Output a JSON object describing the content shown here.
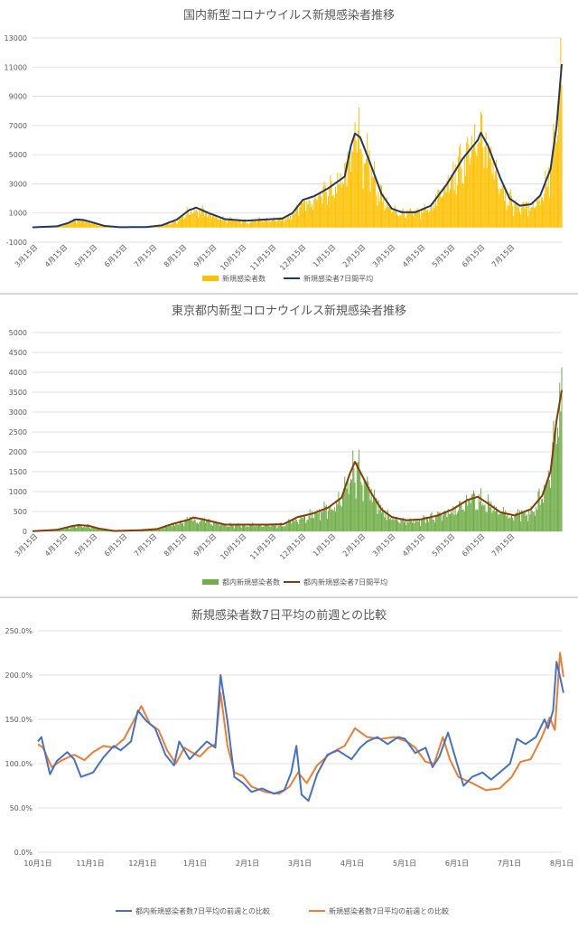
{
  "chart_data": [
    {
      "type": "bar+line",
      "title": "国内新型コロナウイルス新規感染者推移",
      "y_ticks": [
        "13000",
        "11000",
        "9000",
        "7000",
        "5000",
        "3000",
        "1000",
        "-1000"
      ],
      "ylim": [
        -1000,
        13000
      ],
      "x_ticks": [
        "3月15日",
        "4月15日",
        "5月15日",
        "6月15日",
        "7月15日",
        "8月15日",
        "9月15日",
        "10月15日",
        "11月15日",
        "12月15日",
        "1月15日",
        "2月15日",
        "3月15日",
        "4月15日",
        "5月15日",
        "6月15日",
        "7月15日"
      ],
      "x_start": "2020-03-01",
      "x_end": "2021-07-31",
      "grid": true,
      "legend_position": "bottom",
      "series": [
        {
          "name": "新規感染者数",
          "kind": "bar",
          "color": "#ffc000"
        },
        {
          "name": "新規感染者7日間平均",
          "kind": "line",
          "color": "#203864"
        }
      ],
      "avg_keypoints": [
        [
          "2020-03-01",
          20
        ],
        [
          "2020-03-25",
          90
        ],
        [
          "2020-04-05",
          320
        ],
        [
          "2020-04-12",
          560
        ],
        [
          "2020-04-20",
          520
        ],
        [
          "2020-04-30",
          330
        ],
        [
          "2020-05-10",
          120
        ],
        [
          "2020-05-25",
          30
        ],
        [
          "2020-06-20",
          40
        ],
        [
          "2020-07-05",
          150
        ],
        [
          "2020-07-20",
          550
        ],
        [
          "2020-08-01",
          1200
        ],
        [
          "2020-08-08",
          1370
        ],
        [
          "2020-08-20",
          1000
        ],
        [
          "2020-09-05",
          580
        ],
        [
          "2020-09-25",
          470
        ],
        [
          "2020-10-15",
          560
        ],
        [
          "2020-10-31",
          620
        ],
        [
          "2020-11-10",
          1000
        ],
        [
          "2020-11-20",
          1900
        ],
        [
          "2020-12-01",
          2150
        ],
        [
          "2020-12-15",
          2700
        ],
        [
          "2020-12-31",
          3500
        ],
        [
          "2021-01-06",
          5600
        ],
        [
          "2021-01-10",
          6450
        ],
        [
          "2021-01-15",
          6200
        ],
        [
          "2021-01-25",
          4400
        ],
        [
          "2021-02-05",
          2300
        ],
        [
          "2021-02-15",
          1300
        ],
        [
          "2021-02-25",
          1050
        ],
        [
          "2021-03-10",
          1050
        ],
        [
          "2021-03-25",
          1500
        ],
        [
          "2021-04-10",
          3000
        ],
        [
          "2021-04-25",
          4700
        ],
        [
          "2021-05-10",
          6000
        ],
        [
          "2021-05-13",
          6500
        ],
        [
          "2021-05-20",
          5600
        ],
        [
          "2021-06-01",
          3400
        ],
        [
          "2021-06-10",
          2000
        ],
        [
          "2021-06-20",
          1500
        ],
        [
          "2021-07-01",
          1600
        ],
        [
          "2021-07-10",
          2200
        ],
        [
          "2021-07-20",
          4000
        ],
        [
          "2021-07-26",
          7000
        ],
        [
          "2021-07-31",
          11200
        ]
      ]
    },
    {
      "type": "bar+line",
      "title": "東京都内新型コロナウイルス新規感染者推移",
      "y_ticks": [
        "5000",
        "4500",
        "4000",
        "3500",
        "3000",
        "2500",
        "2000",
        "1500",
        "1000",
        "500",
        "0"
      ],
      "ylim": [
        0,
        5000
      ],
      "x_ticks": [
        "3月15日",
        "4月15日",
        "5月15日",
        "6月15日",
        "7月15日",
        "8月15日",
        "9月15日",
        "10月15日",
        "11月15日",
        "12月15日",
        "1月15日",
        "2月15日",
        "3月15日",
        "4月15日",
        "5月15日",
        "6月15日",
        "7月15日"
      ],
      "x_start": "2020-03-01",
      "x_end": "2021-07-31",
      "grid": true,
      "legend_position": "bottom",
      "series": [
        {
          "name": "都内新規感染者数",
          "kind": "bar",
          "color": "#70ad47"
        },
        {
          "name": "都内新規感染者7日間平均",
          "kind": "line",
          "color": "#843c0c"
        }
      ],
      "avg_keypoints": [
        [
          "2020-03-01",
          5
        ],
        [
          "2020-03-25",
          40
        ],
        [
          "2020-04-08",
          130
        ],
        [
          "2020-04-15",
          160
        ],
        [
          "2020-04-25",
          140
        ],
        [
          "2020-05-05",
          70
        ],
        [
          "2020-05-20",
          10
        ],
        [
          "2020-06-15",
          30
        ],
        [
          "2020-07-01",
          60
        ],
        [
          "2020-07-15",
          180
        ],
        [
          "2020-07-31",
          290
        ],
        [
          "2020-08-05",
          350
        ],
        [
          "2020-08-15",
          300
        ],
        [
          "2020-09-05",
          170
        ],
        [
          "2020-09-25",
          170
        ],
        [
          "2020-10-15",
          170
        ],
        [
          "2020-11-01",
          180
        ],
        [
          "2020-11-15",
          360
        ],
        [
          "2020-11-30",
          450
        ],
        [
          "2020-12-15",
          600
        ],
        [
          "2020-12-28",
          850
        ],
        [
          "2021-01-05",
          1450
        ],
        [
          "2021-01-10",
          1750
        ],
        [
          "2021-01-15",
          1500
        ],
        [
          "2021-01-25",
          1000
        ],
        [
          "2021-02-05",
          550
        ],
        [
          "2021-02-15",
          360
        ],
        [
          "2021-03-01",
          280
        ],
        [
          "2021-03-15",
          300
        ],
        [
          "2021-04-01",
          400
        ],
        [
          "2021-04-15",
          550
        ],
        [
          "2021-04-30",
          790
        ],
        [
          "2021-05-10",
          870
        ],
        [
          "2021-05-20",
          700
        ],
        [
          "2021-06-01",
          480
        ],
        [
          "2021-06-15",
          400
        ],
        [
          "2021-07-01",
          560
        ],
        [
          "2021-07-12",
          900
        ],
        [
          "2021-07-20",
          1500
        ],
        [
          "2021-07-26",
          2800
        ],
        [
          "2021-07-31",
          3550
        ]
      ]
    },
    {
      "type": "line",
      "title": "新規感染者数7日平均の前週との比較",
      "y_ticks": [
        "250.0%",
        "200.0%",
        "150.0%",
        "100.0%",
        "50.0%",
        "0.0%"
      ],
      "ylim": [
        0,
        250
      ],
      "x_ticks": [
        "10月1日",
        "11月1日",
        "12月1日",
        "1月1日",
        "2月1日",
        "3月1日",
        "4月1日",
        "5月1日",
        "6月1日",
        "7月1日",
        "8月1日"
      ],
      "x_start": "2020-10-01",
      "x_end": "2021-08-01",
      "grid": true,
      "legend_position": "bottom",
      "series": [
        {
          "name": "都内新規感染者数7日平均の前週との比較",
          "color": "#4472c4",
          "keypoints": [
            [
              "2020-10-01",
              125
            ],
            [
              "2020-10-03",
              130
            ],
            [
              "2020-10-08",
              88
            ],
            [
              "2020-10-12",
              103
            ],
            [
              "2020-10-18",
              113
            ],
            [
              "2020-10-22",
              105
            ],
            [
              "2020-10-26",
              85
            ],
            [
              "2020-11-02",
              90
            ],
            [
              "2020-11-08",
              107
            ],
            [
              "2020-11-14",
              120
            ],
            [
              "2020-11-18",
              115
            ],
            [
              "2020-11-24",
              125
            ],
            [
              "2020-11-28",
              160
            ],
            [
              "2020-12-03",
              148
            ],
            [
              "2020-12-08",
              140
            ],
            [
              "2020-12-14",
              110
            ],
            [
              "2020-12-19",
              98
            ],
            [
              "2020-12-22",
              125
            ],
            [
              "2020-12-28",
              105
            ],
            [
              "2021-01-02",
              115
            ],
            [
              "2021-01-07",
              125
            ],
            [
              "2021-01-12",
              118
            ],
            [
              "2021-01-15",
              200
            ],
            [
              "2021-01-19",
              148
            ],
            [
              "2021-01-23",
              85
            ],
            [
              "2021-01-28",
              78
            ],
            [
              "2021-02-02",
              68
            ],
            [
              "2021-02-08",
              72
            ],
            [
              "2021-02-15",
              66
            ],
            [
              "2021-02-21",
              70
            ],
            [
              "2021-02-25",
              90
            ],
            [
              "2021-02-28",
              120
            ],
            [
              "2021-03-03",
              65
            ],
            [
              "2021-03-07",
              58
            ],
            [
              "2021-03-12",
              88
            ],
            [
              "2021-03-18",
              110
            ],
            [
              "2021-03-24",
              115
            ],
            [
              "2021-04-01",
              105
            ],
            [
              "2021-04-06",
              118
            ],
            [
              "2021-04-10",
              125
            ],
            [
              "2021-04-16",
              130
            ],
            [
              "2021-04-22",
              122
            ],
            [
              "2021-04-28",
              130
            ],
            [
              "2021-05-02",
              128
            ],
            [
              "2021-05-08",
              112
            ],
            [
              "2021-05-14",
              118
            ],
            [
              "2021-05-18",
              96
            ],
            [
              "2021-05-22",
              108
            ],
            [
              "2021-05-27",
              135
            ],
            [
              "2021-05-30",
              115
            ],
            [
              "2021-06-05",
              75
            ],
            [
              "2021-06-10",
              85
            ],
            [
              "2021-06-16",
              90
            ],
            [
              "2021-06-21",
              82
            ],
            [
              "2021-06-26",
              90
            ],
            [
              "2021-07-02",
              100
            ],
            [
              "2021-07-06",
              128
            ],
            [
              "2021-07-11",
              122
            ],
            [
              "2021-07-17",
              130
            ],
            [
              "2021-07-22",
              150
            ],
            [
              "2021-07-24",
              140
            ],
            [
              "2021-07-27",
              160
            ],
            [
              "2021-07-29",
              215
            ],
            [
              "2021-07-31",
              198
            ],
            [
              "2021-08-02",
              180
            ]
          ]
        },
        {
          "name": "新規感染者数7日平均の前週との比較",
          "color": "#ed7d31",
          "keypoints": [
            [
              "2020-10-01",
              122
            ],
            [
              "2020-10-04",
              118
            ],
            [
              "2020-10-09",
              96
            ],
            [
              "2020-10-15",
              104
            ],
            [
              "2020-10-22",
              110
            ],
            [
              "2020-10-28",
              104
            ],
            [
              "2020-11-02",
              113
            ],
            [
              "2020-11-08",
              120
            ],
            [
              "2020-11-14",
              118
            ],
            [
              "2020-11-20",
              128
            ],
            [
              "2020-11-26",
              150
            ],
            [
              "2020-11-30",
              165
            ],
            [
              "2020-12-05",
              145
            ],
            [
              "2020-12-10",
              138
            ],
            [
              "2020-12-15",
              115
            ],
            [
              "2020-12-20",
              100
            ],
            [
              "2020-12-25",
              118
            ],
            [
              "2020-12-30",
              112
            ],
            [
              "2021-01-03",
              108
            ],
            [
              "2021-01-08",
              118
            ],
            [
              "2021-01-12",
              122
            ],
            [
              "2021-01-15",
              180
            ],
            [
              "2021-01-19",
              120
            ],
            [
              "2021-01-23",
              90
            ],
            [
              "2021-01-28",
              86
            ],
            [
              "2021-02-02",
              74
            ],
            [
              "2021-02-10",
              68
            ],
            [
              "2021-02-18",
              66
            ],
            [
              "2021-02-24",
              74
            ],
            [
              "2021-03-01",
              90
            ],
            [
              "2021-03-06",
              78
            ],
            [
              "2021-03-12",
              98
            ],
            [
              "2021-03-20",
              112
            ],
            [
              "2021-03-28",
              120
            ],
            [
              "2021-04-03",
              140
            ],
            [
              "2021-04-10",
              130
            ],
            [
              "2021-04-18",
              128
            ],
            [
              "2021-04-26",
              130
            ],
            [
              "2021-05-03",
              125
            ],
            [
              "2021-05-08",
              118
            ],
            [
              "2021-05-14",
              102
            ],
            [
              "2021-05-19",
              100
            ],
            [
              "2021-05-24",
              130
            ],
            [
              "2021-05-28",
              105
            ],
            [
              "2021-06-02",
              85
            ],
            [
              "2021-06-10",
              78
            ],
            [
              "2021-06-18",
              70
            ],
            [
              "2021-06-26",
              72
            ],
            [
              "2021-07-03",
              85
            ],
            [
              "2021-07-08",
              102
            ],
            [
              "2021-07-14",
              105
            ],
            [
              "2021-07-20",
              128
            ],
            [
              "2021-07-25",
              152
            ],
            [
              "2021-07-28",
              138
            ],
            [
              "2021-07-31",
              225
            ],
            [
              "2021-08-02",
              198
            ]
          ]
        }
      ]
    }
  ]
}
